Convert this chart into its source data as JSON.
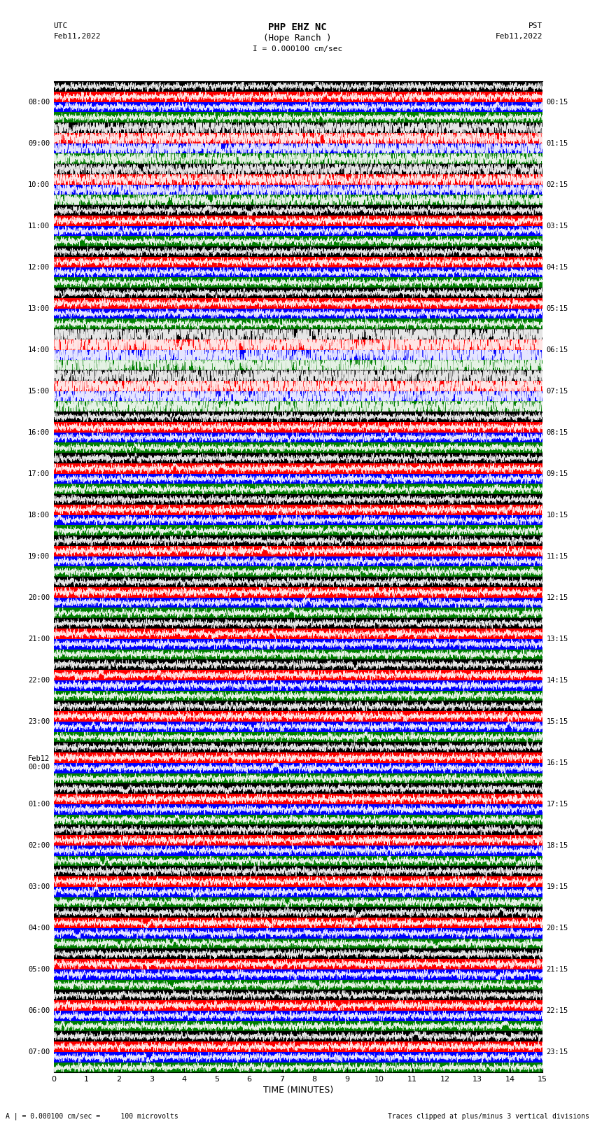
{
  "title_line1": "PHP EHZ NC",
  "title_line2": "(Hope Ranch )",
  "scale_text": "I = 0.000100 cm/sec",
  "utc_label": "UTC",
  "utc_date": "Feb11,2022",
  "pst_label": "PST",
  "pst_date": "Feb11,2022",
  "left_times": [
    "08:00",
    "09:00",
    "10:00",
    "11:00",
    "12:00",
    "13:00",
    "14:00",
    "15:00",
    "16:00",
    "17:00",
    "18:00",
    "19:00",
    "20:00",
    "21:00",
    "22:00",
    "23:00",
    "Feb12\n00:00",
    "01:00",
    "02:00",
    "03:00",
    "04:00",
    "05:00",
    "06:00",
    "07:00"
  ],
  "right_times": [
    "00:15",
    "01:15",
    "02:15",
    "03:15",
    "04:15",
    "05:15",
    "06:15",
    "07:15",
    "08:15",
    "09:15",
    "10:15",
    "11:15",
    "12:15",
    "13:15",
    "14:15",
    "15:15",
    "16:15",
    "17:15",
    "18:15",
    "19:15",
    "20:15",
    "21:15",
    "22:15",
    "23:15"
  ],
  "xlabel": "TIME (MINUTES)",
  "xticks": [
    0,
    1,
    2,
    3,
    4,
    5,
    6,
    7,
    8,
    9,
    10,
    11,
    12,
    13,
    14,
    15
  ],
  "xlim": [
    0,
    15
  ],
  "n_rows": 24,
  "n_cols": 4,
  "trace_colors": [
    "black",
    "red",
    "blue",
    "green"
  ],
  "background_color": "white",
  "bottom_note_left": "A | = 0.000100 cm/sec =     100 microvolts",
  "bottom_note_right": "Traces clipped at plus/minus 3 vertical divisions",
  "fig_width": 8.5,
  "fig_height": 16.13,
  "dpi": 100
}
